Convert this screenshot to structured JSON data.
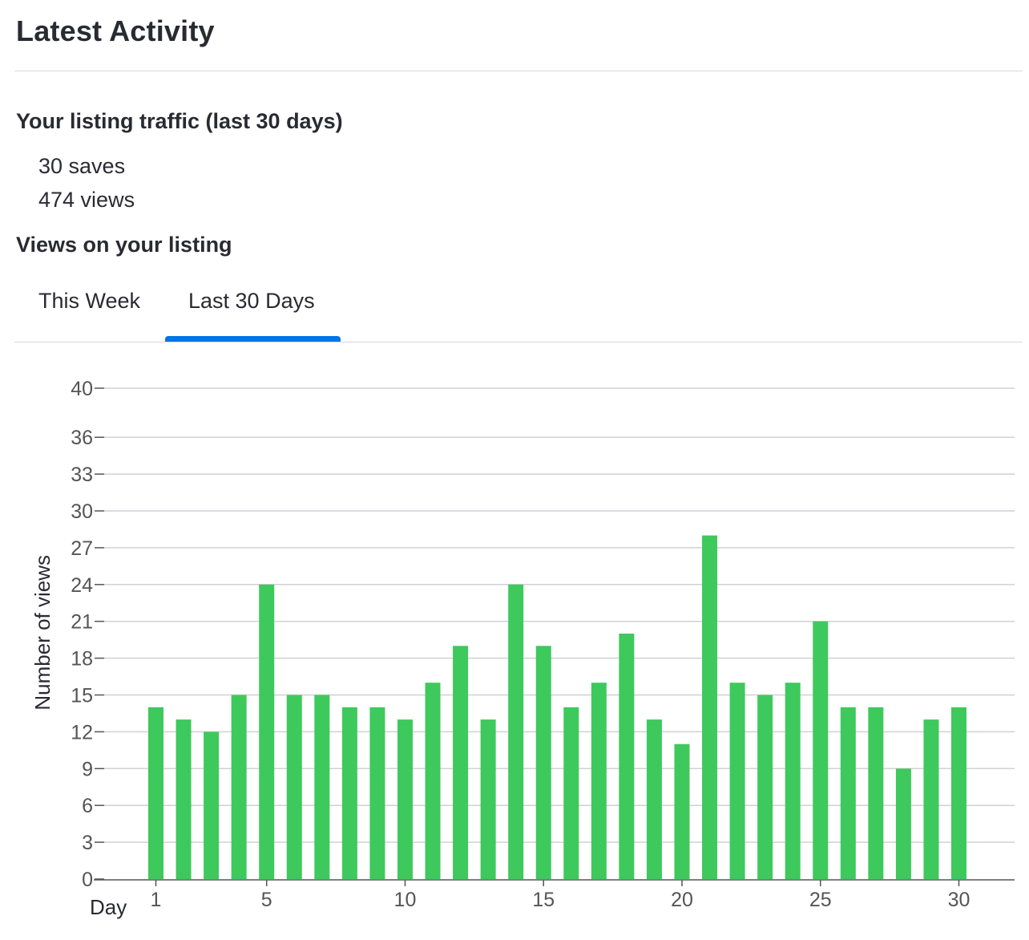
{
  "page": {
    "title": "Latest Activity"
  },
  "traffic": {
    "heading": "Your listing traffic (last 30 days)",
    "saves": "30 saves",
    "views": "474 views"
  },
  "views_section": {
    "heading": "Views on your listing",
    "tabs": [
      {
        "label": "This Week",
        "selected": false
      },
      {
        "label": "Last 30 Days",
        "selected": true
      }
    ]
  },
  "colors": {
    "bar": "#3ec95c",
    "accent": "#0074e4",
    "text": "#2a2a33",
    "grid": "#d0d0d6"
  },
  "chart_data": {
    "type": "bar",
    "title": "",
    "xlabel": "Day",
    "ylabel": "Number of views",
    "x": [
      1,
      2,
      3,
      4,
      5,
      6,
      7,
      8,
      9,
      10,
      11,
      12,
      13,
      14,
      15,
      16,
      17,
      18,
      19,
      20,
      21,
      22,
      23,
      24,
      25,
      26,
      27,
      28,
      29,
      30
    ],
    "values": [
      14,
      13,
      12,
      15,
      24,
      15,
      15,
      14,
      14,
      13,
      16,
      19,
      13,
      24,
      19,
      14,
      16,
      20,
      13,
      11,
      28,
      16,
      15,
      16,
      21,
      14,
      14,
      9,
      13,
      14
    ],
    "xticks": [
      1,
      5,
      10,
      15,
      20,
      25,
      30
    ],
    "yticks": [
      0,
      3,
      6,
      9,
      12,
      15,
      18,
      21,
      24,
      27,
      30,
      33,
      36,
      40
    ],
    "ylim": [
      0,
      40
    ],
    "grid": true
  }
}
